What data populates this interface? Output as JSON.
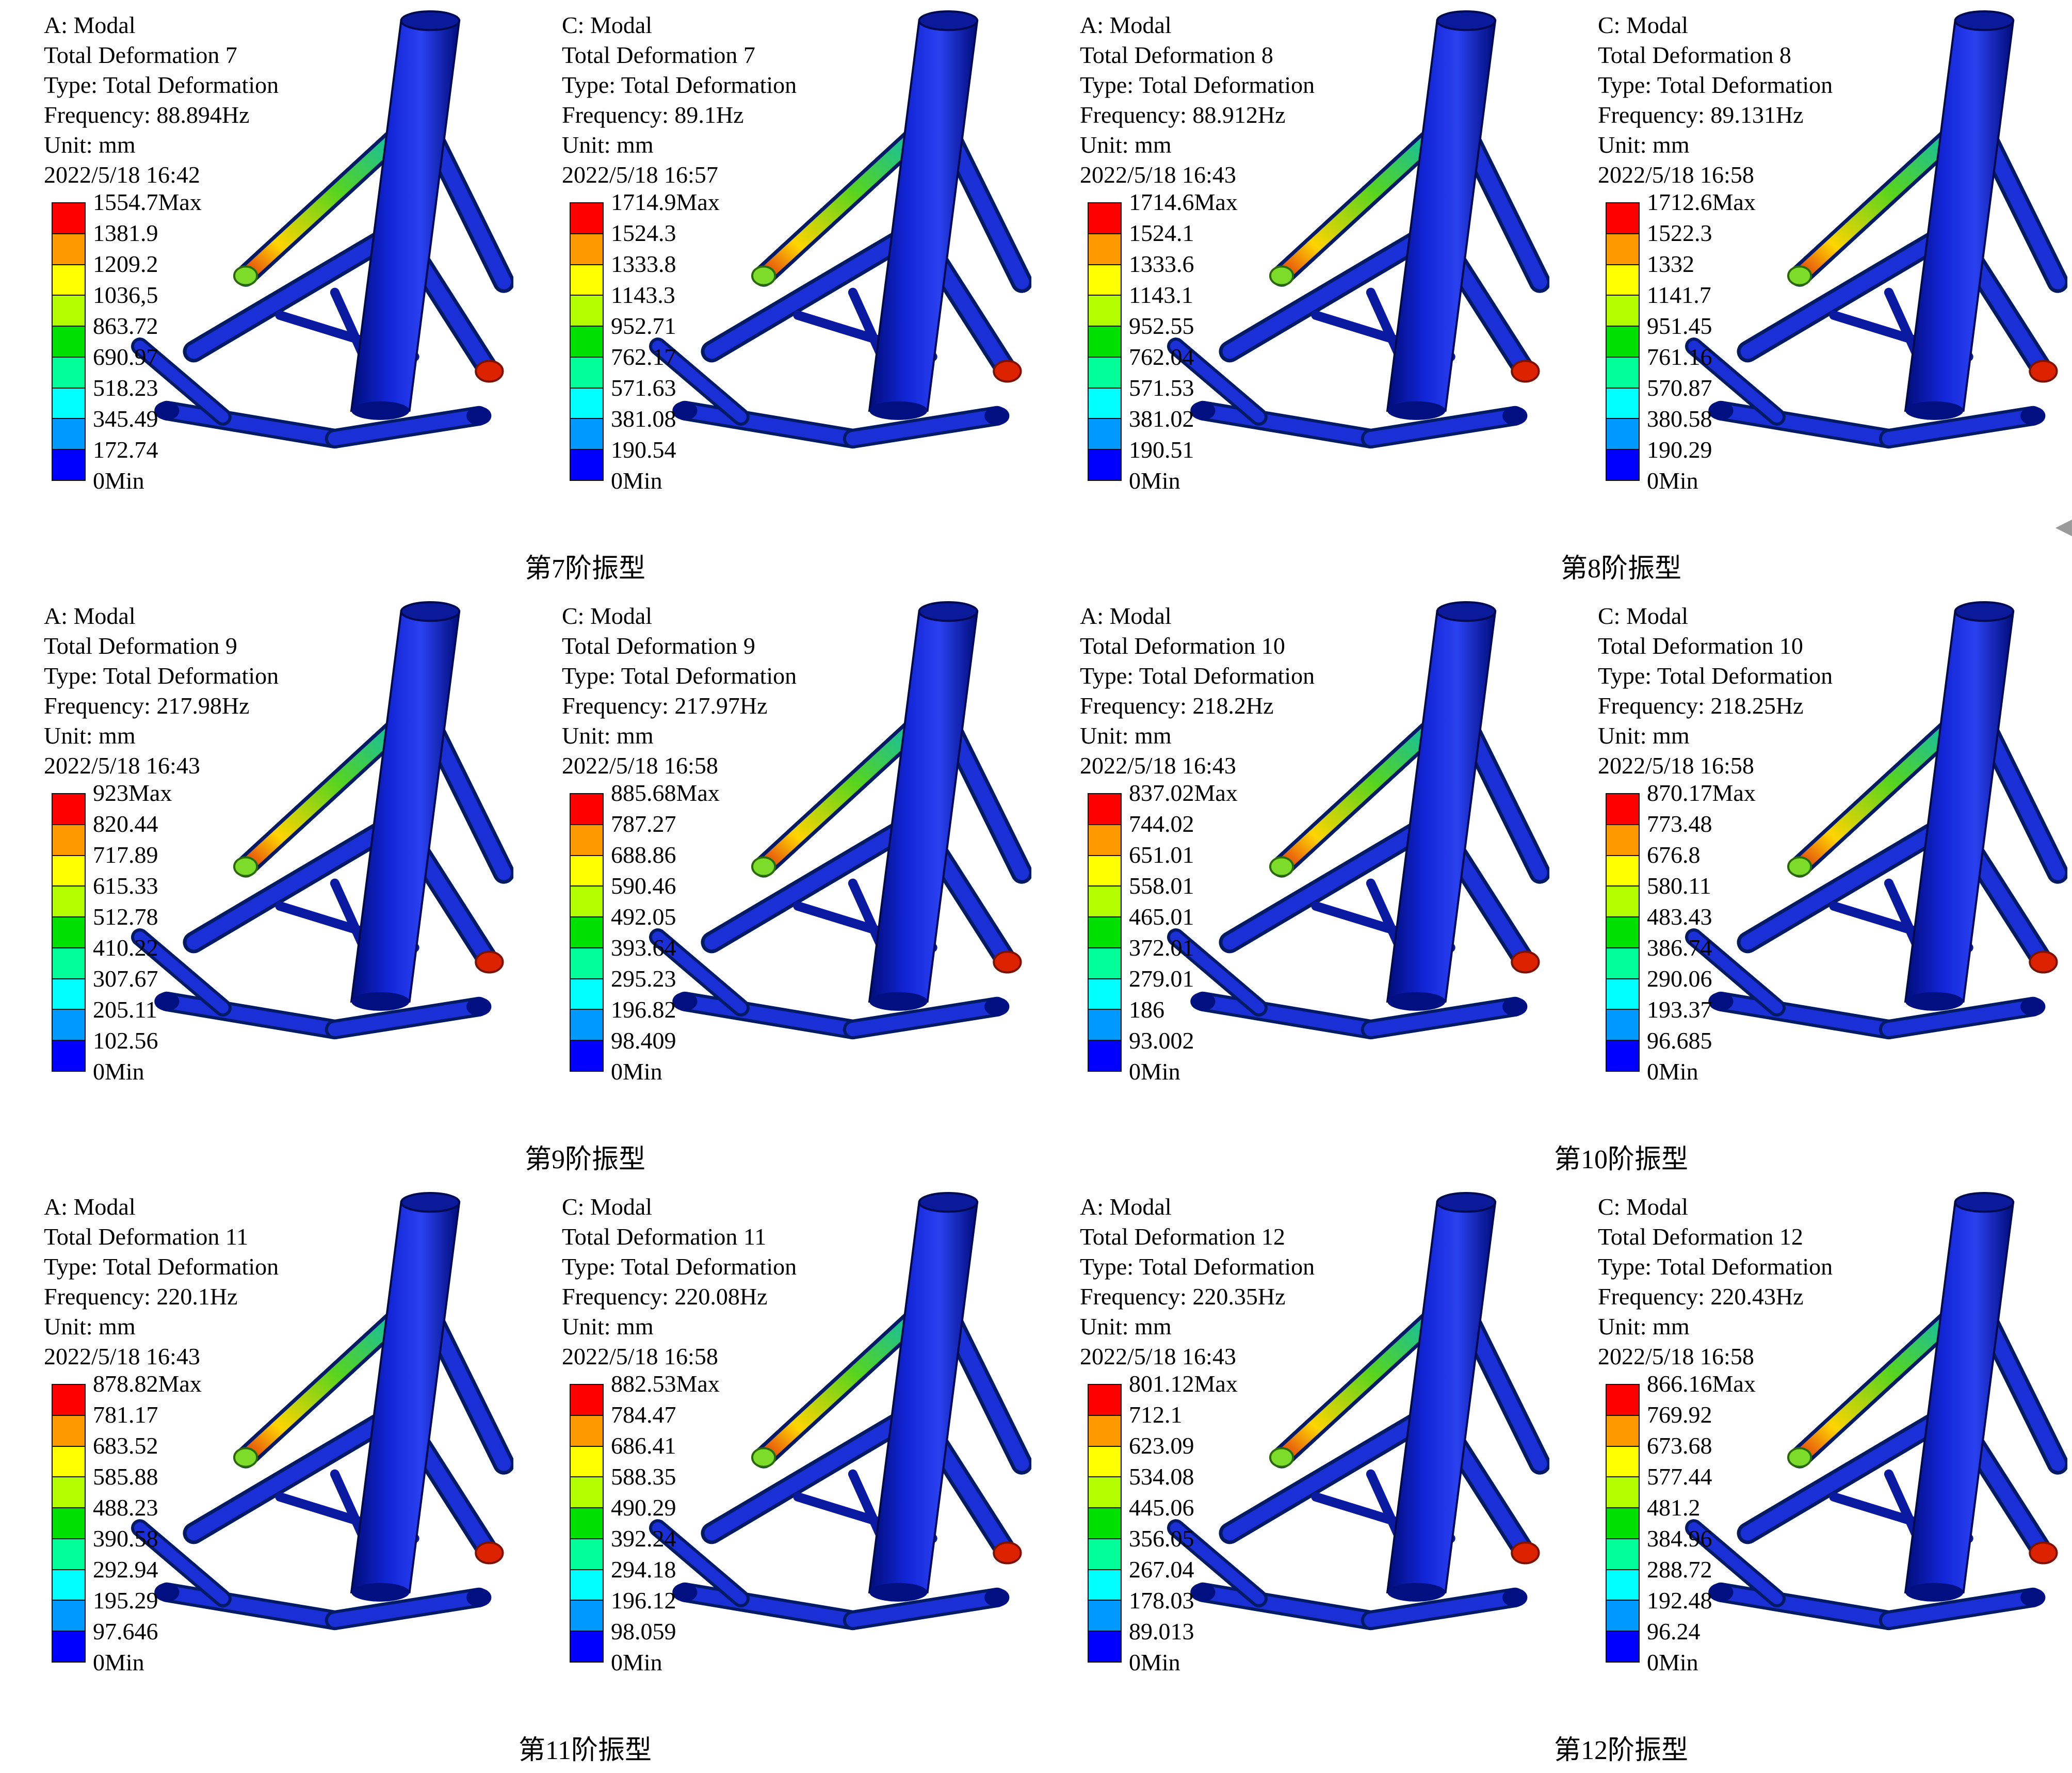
{
  "figure": {
    "background_color": "#ffffff",
    "text_color": "#000000"
  },
  "legend_colors": [
    "#ff0000",
    "#ff9900",
    "#ffff00",
    "#b3ff00",
    "#00e000",
    "#00ff99",
    "#00ffff",
    "#0099ff",
    "#0000ff"
  ],
  "icons": {
    "margin_arrow": "◀"
  },
  "captions": [
    "第7阶振型",
    "第8阶振型",
    "第9阶振型",
    "第10阶振型",
    "第11阶振型",
    "第12阶振型"
  ],
  "panels": [
    {
      "system": "A: Modal",
      "result": "Total Deformation 7",
      "type": "Type: Total Deformation",
      "frequency": "Frequency: 88.894Hz",
      "unit": "Unit: mm",
      "timestamp": "2022/5/18 16:42",
      "legend_values": [
        "1554.7Max",
        "1381.9",
        "1209.2",
        "1036,5",
        "863.72",
        "690.97",
        "518.23",
        "345.49",
        "172.74",
        "0Min"
      ]
    },
    {
      "system": "C: Modal",
      "result": "Total Deformation 7",
      "type": "Type: Total Deformation",
      "frequency": "Frequency: 89.1Hz",
      "unit": "Unit: mm",
      "timestamp": "2022/5/18 16:57",
      "legend_values": [
        "1714.9Max",
        "1524.3",
        "1333.8",
        "1143.3",
        "952.71",
        "762.17",
        "571.63",
        "381.08",
        "190.54",
        "0Min"
      ]
    },
    {
      "system": "A: Modal",
      "result": "Total Deformation 8",
      "type": "Type: Total Deformation",
      "frequency": "Frequency: 88.912Hz",
      "unit": "Unit: mm",
      "timestamp": "2022/5/18 16:43",
      "legend_values": [
        "1714.6Max",
        "1524.1",
        "1333.6",
        "1143.1",
        "952.55",
        "762.04",
        "571.53",
        "381.02",
        "190.51",
        "0Min"
      ]
    },
    {
      "system": "C: Modal",
      "result": "Total Deformation 8",
      "type": "Type: Total Deformation",
      "frequency": "Frequency: 89.131Hz",
      "unit": "Unit: mm",
      "timestamp": "2022/5/18 16:58",
      "legend_values": [
        "1712.6Max",
        "1522.3",
        "1332",
        "1141.7",
        "951.45",
        "761.16",
        "570.87",
        "380.58",
        "190.29",
        "0Min"
      ]
    },
    {
      "system": "A: Modal",
      "result": "Total Deformation 9",
      "type": "Type: Total Deformation",
      "frequency": "Frequency: 217.98Hz",
      "unit": "Unit: mm",
      "timestamp": "2022/5/18 16:43",
      "legend_values": [
        "923Max",
        "820.44",
        "717.89",
        "615.33",
        "512.78",
        "410.22",
        "307.67",
        "205.11",
        "102.56",
        "0Min"
      ]
    },
    {
      "system": "C: Modal",
      "result": "Total Deformation 9",
      "type": "Type: Total Deformation",
      "frequency": "Frequency: 217.97Hz",
      "unit": "Unit: mm",
      "timestamp": "2022/5/18 16:58",
      "legend_values": [
        "885.68Max",
        "787.27",
        "688.86",
        "590.46",
        "492.05",
        "393.64",
        "295.23",
        "196.82",
        "98.409",
        "0Min"
      ]
    },
    {
      "system": "A: Modal",
      "result": "Total Deformation 10",
      "type": "Type: Total Deformation",
      "frequency": "Frequency: 218.2Hz",
      "unit": "Unit: mm",
      "timestamp": "2022/5/18 16:43",
      "legend_values": [
        "837.02Max",
        "744.02",
        "651.01",
        "558.01",
        "465.01",
        "372.01",
        "279.01",
        "186",
        "93.002",
        "0Min"
      ]
    },
    {
      "system": "C: Modal",
      "result": "Total Deformation 10",
      "type": "Type: Total Deformation",
      "frequency": "Frequency: 218.25Hz",
      "unit": "Unit: mm",
      "timestamp": "2022/5/18 16:58",
      "legend_values": [
        "870.17Max",
        "773.48",
        "676.8",
        "580.11",
        "483.43",
        "386.74",
        "290.06",
        "193.37",
        "96.685",
        "0Min"
      ]
    },
    {
      "system": "A: Modal",
      "result": "Total Deformation 11",
      "type": "Type: Total Deformation",
      "frequency": "Frequency: 220.1Hz",
      "unit": "Unit: mm",
      "timestamp": "2022/5/18 16:43",
      "legend_values": [
        "878.82Max",
        "781.17",
        "683.52",
        "585.88",
        "488.23",
        "390.58",
        "292.94",
        "195.29",
        "97.646",
        "0Min"
      ]
    },
    {
      "system": "C: Modal",
      "result": "Total Deformation 11",
      "type": "Type: Total Deformation",
      "frequency": "Frequency: 220.08Hz",
      "unit": "Unit: mm",
      "timestamp": "2022/5/18 16:58",
      "legend_values": [
        "882.53Max",
        "784.47",
        "686.41",
        "588.35",
        "490.29",
        "392.24",
        "294.18",
        "196.12",
        "98.059",
        "0Min"
      ]
    },
    {
      "system": "A: Modal",
      "result": "Total Deformation 12",
      "type": "Type: Total Deformation",
      "frequency": "Frequency: 220.35Hz",
      "unit": "Unit: mm",
      "timestamp": "2022/5/18 16:43",
      "legend_values": [
        "801.12Max",
        "712.1",
        "623.09",
        "534.08",
        "445.06",
        "356.05",
        "267.04",
        "178.03",
        "89.013",
        "0Min"
      ]
    },
    {
      "system": "C: Modal",
      "result": "Total Deformation 12",
      "type": "Type: Total Deformation",
      "frequency": "Frequency: 220.43Hz",
      "unit": "Unit: mm",
      "timestamp": "2022/5/18 16:58",
      "legend_values": [
        "866.16Max",
        "769.92",
        "673.68",
        "577.44",
        "481.2",
        "384.96",
        "288.72",
        "192.48",
        "96.24",
        "0Min"
      ]
    }
  ]
}
